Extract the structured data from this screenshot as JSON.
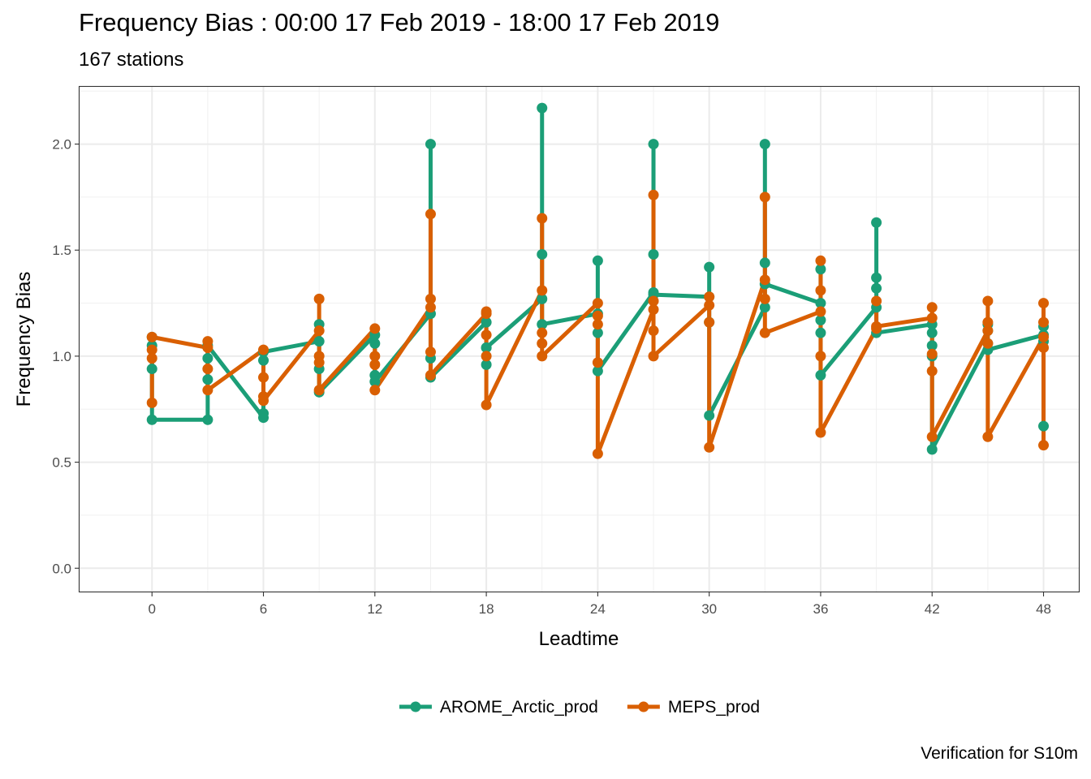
{
  "title": "Frequency Bias : 00:00 17 Feb 2019 - 18:00 17 Feb 2019",
  "subtitle": "167 stations",
  "caption": "Verification for S10m",
  "chart_data": {
    "type": "line",
    "xlabel": "Leadtime",
    "ylabel": "Frequency Bias",
    "xlim": [
      -3.9,
      49.9
    ],
    "ylim": [
      -0.11,
      2.27
    ],
    "x_ticks": [
      0,
      6,
      12,
      18,
      24,
      30,
      36,
      42,
      48
    ],
    "y_ticks": [
      0.0,
      0.5,
      1.0,
      1.5,
      2.0
    ],
    "y_tick_labels": [
      "0.0",
      "0.5",
      "1.0",
      "1.5",
      "2.0"
    ],
    "grid": true,
    "legend_position": "bottom",
    "series": [
      {
        "name": "AROME_Arctic_prod",
        "color": "#1b9e77",
        "points": [
          [
            0,
            0.94
          ],
          [
            0,
            1.05
          ],
          [
            0,
            1.09
          ],
          [
            0,
            0.7
          ],
          [
            3,
            0.7
          ],
          [
            3,
            0.89
          ],
          [
            3,
            0.99
          ],
          [
            3,
            1.05
          ],
          [
            6,
            0.71
          ],
          [
            6,
            0.73
          ],
          [
            6,
            0.98
          ],
          [
            6,
            1.02
          ],
          [
            9,
            1.07
          ],
          [
            9,
            1.15
          ],
          [
            9,
            0.94
          ],
          [
            9,
            0.83
          ],
          [
            12,
            1.1
          ],
          [
            12,
            1.06
          ],
          [
            12,
            0.91
          ],
          [
            12,
            0.88
          ],
          [
            15,
            1.2
          ],
          [
            15,
            2.0
          ],
          [
            15,
            0.99
          ],
          [
            15,
            0.9
          ],
          [
            18,
            1.16
          ],
          [
            18,
            1.04
          ],
          [
            18,
            0.96
          ],
          [
            18,
            1.04
          ],
          [
            21,
            1.27
          ],
          [
            21,
            2.17
          ],
          [
            21,
            1.48
          ],
          [
            21,
            1.15
          ],
          [
            24,
            1.2
          ],
          [
            24,
            1.45
          ],
          [
            24,
            1.11
          ],
          [
            24,
            0.93
          ],
          [
            27,
            1.3
          ],
          [
            27,
            2.0
          ],
          [
            27,
            1.48
          ],
          [
            27,
            1.29
          ],
          [
            30,
            1.28
          ],
          [
            30,
            1.42
          ],
          [
            30,
            1.16
          ],
          [
            30,
            0.72
          ],
          [
            33,
            1.23
          ],
          [
            33,
            2.0
          ],
          [
            33,
            1.44
          ],
          [
            33,
            1.34
          ],
          [
            36,
            1.25
          ],
          [
            36,
            1.41
          ],
          [
            36,
            1.17
          ],
          [
            36,
            1.11
          ],
          [
            36,
            0.91
          ],
          [
            39,
            1.23
          ],
          [
            39,
            1.63
          ],
          [
            39,
            1.37
          ],
          [
            39,
            1.32
          ],
          [
            39,
            1.11
          ],
          [
            42,
            1.15
          ],
          [
            42,
            1.11
          ],
          [
            42,
            1.05
          ],
          [
            42,
            1.0
          ],
          [
            42,
            0.56
          ],
          [
            45,
            1.06
          ],
          [
            45,
            1.15
          ],
          [
            45,
            1.12
          ],
          [
            45,
            1.03
          ],
          [
            48,
            1.1
          ],
          [
            48,
            1.14
          ],
          [
            48,
            1.07
          ],
          [
            48,
            0.67
          ]
        ]
      },
      {
        "name": "MEPS_prod",
        "color": "#d95f02",
        "points": [
          [
            0,
            0.78
          ],
          [
            0,
            0.99
          ],
          [
            0,
            1.03
          ],
          [
            0,
            1.09
          ],
          [
            3,
            1.04
          ],
          [
            3,
            1.07
          ],
          [
            3,
            0.94
          ],
          [
            3,
            0.84
          ],
          [
            6,
            1.03
          ],
          [
            6,
            0.9
          ],
          [
            6,
            0.81
          ],
          [
            6,
            0.79
          ],
          [
            9,
            1.12
          ],
          [
            9,
            1.27
          ],
          [
            9,
            1.0
          ],
          [
            9,
            0.97
          ],
          [
            9,
            0.84
          ],
          [
            12,
            1.13
          ],
          [
            12,
            1.0
          ],
          [
            12,
            0.96
          ],
          [
            12,
            0.84
          ],
          [
            15,
            1.23
          ],
          [
            15,
            1.67
          ],
          [
            15,
            1.27
          ],
          [
            15,
            1.02
          ],
          [
            15,
            0.91
          ],
          [
            18,
            1.2
          ],
          [
            18,
            1.21
          ],
          [
            18,
            1.1
          ],
          [
            18,
            1.0
          ],
          [
            18,
            0.77
          ],
          [
            21,
            1.31
          ],
          [
            21,
            1.65
          ],
          [
            21,
            1.11
          ],
          [
            21,
            1.06
          ],
          [
            21,
            1.0
          ],
          [
            24,
            1.25
          ],
          [
            24,
            1.19
          ],
          [
            24,
            1.15
          ],
          [
            24,
            0.97
          ],
          [
            24,
            0.54
          ],
          [
            27,
            1.22
          ],
          [
            27,
            1.76
          ],
          [
            27,
            1.26
          ],
          [
            27,
            1.12
          ],
          [
            27,
            1.0
          ],
          [
            30,
            1.24
          ],
          [
            30,
            1.28
          ],
          [
            30,
            1.16
          ],
          [
            30,
            0.57
          ],
          [
            33,
            1.36
          ],
          [
            33,
            1.75
          ],
          [
            33,
            1.27
          ],
          [
            33,
            1.11
          ],
          [
            36,
            1.21
          ],
          [
            36,
            1.45
          ],
          [
            36,
            1.31
          ],
          [
            36,
            1.0
          ],
          [
            36,
            0.64
          ],
          [
            39,
            1.13
          ],
          [
            39,
            1.26
          ],
          [
            39,
            1.14
          ],
          [
            42,
            1.18
          ],
          [
            42,
            1.23
          ],
          [
            42,
            0.93
          ],
          [
            42,
            1.01
          ],
          [
            42,
            0.62
          ],
          [
            45,
            1.12
          ],
          [
            45,
            1.26
          ],
          [
            45,
            1.16
          ],
          [
            45,
            1.06
          ],
          [
            45,
            0.62
          ],
          [
            48,
            1.09
          ],
          [
            48,
            1.25
          ],
          [
            48,
            1.16
          ],
          [
            48,
            1.04
          ],
          [
            48,
            0.58
          ]
        ]
      }
    ]
  }
}
